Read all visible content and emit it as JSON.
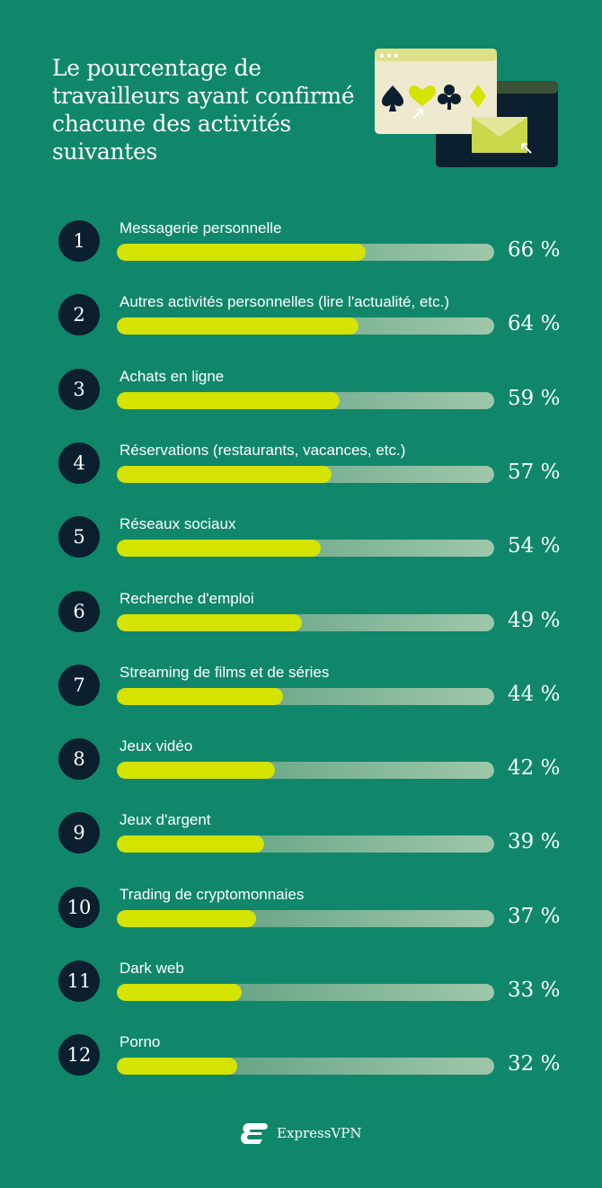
{
  "chart_data": {
    "type": "bar",
    "orientation": "horizontal",
    "title": "Le pourcentage de travailleurs ayant confirmé chacune des activités suivantes",
    "unit": "%",
    "xlim": [
      0,
      100
    ],
    "grid": false,
    "colors": {
      "fill": "#d4e300",
      "track": "#7fb594",
      "rank_badge": "#0b1f2e",
      "background": "#10876b"
    },
    "items": [
      {
        "rank": "1",
        "label": "Messagerie personnelle",
        "value": 66,
        "value_label": "66 %"
      },
      {
        "rank": "2",
        "label": "Autres activités personnelles (lire l'actualité, etc.)",
        "value": 64,
        "value_label": "64 %"
      },
      {
        "rank": "3",
        "label": "Achats en ligne",
        "value": 59,
        "value_label": "59 %"
      },
      {
        "rank": "4",
        "label": "Réservations (restaurants, vacances, etc.)",
        "value": 57,
        "value_label": "57 %"
      },
      {
        "rank": "5",
        "label": "Réseaux sociaux",
        "value": 54,
        "value_label": "54 %"
      },
      {
        "rank": "6",
        "label": "Recherche d'emploi",
        "value": 49,
        "value_label": "49 %"
      },
      {
        "rank": "7",
        "label": "Streaming de films et de séries",
        "value": 44,
        "value_label": "44 %"
      },
      {
        "rank": "8",
        "label": "Jeux vidéo",
        "value": 42,
        "value_label": "42 %"
      },
      {
        "rank": "9",
        "label": "Jeux d'argent",
        "value": 39,
        "value_label": "39 %"
      },
      {
        "rank": "10",
        "label": "Trading de cryptomonnaies",
        "value": 37,
        "value_label": "37 %"
      },
      {
        "rank": "11",
        "label": "Dark web",
        "value": 33,
        "value_label": "33 %"
      },
      {
        "rank": "12",
        "label": "Porno",
        "value": 32,
        "value_label": "32 %"
      }
    ]
  },
  "brand": {
    "name": "ExpressVPN",
    "icon": "expressvpn-logo-icon"
  },
  "illustration": {
    "icons": [
      "browser-window-icon",
      "card-suits-icon",
      "envelope-icon",
      "cursor-icon"
    ]
  }
}
